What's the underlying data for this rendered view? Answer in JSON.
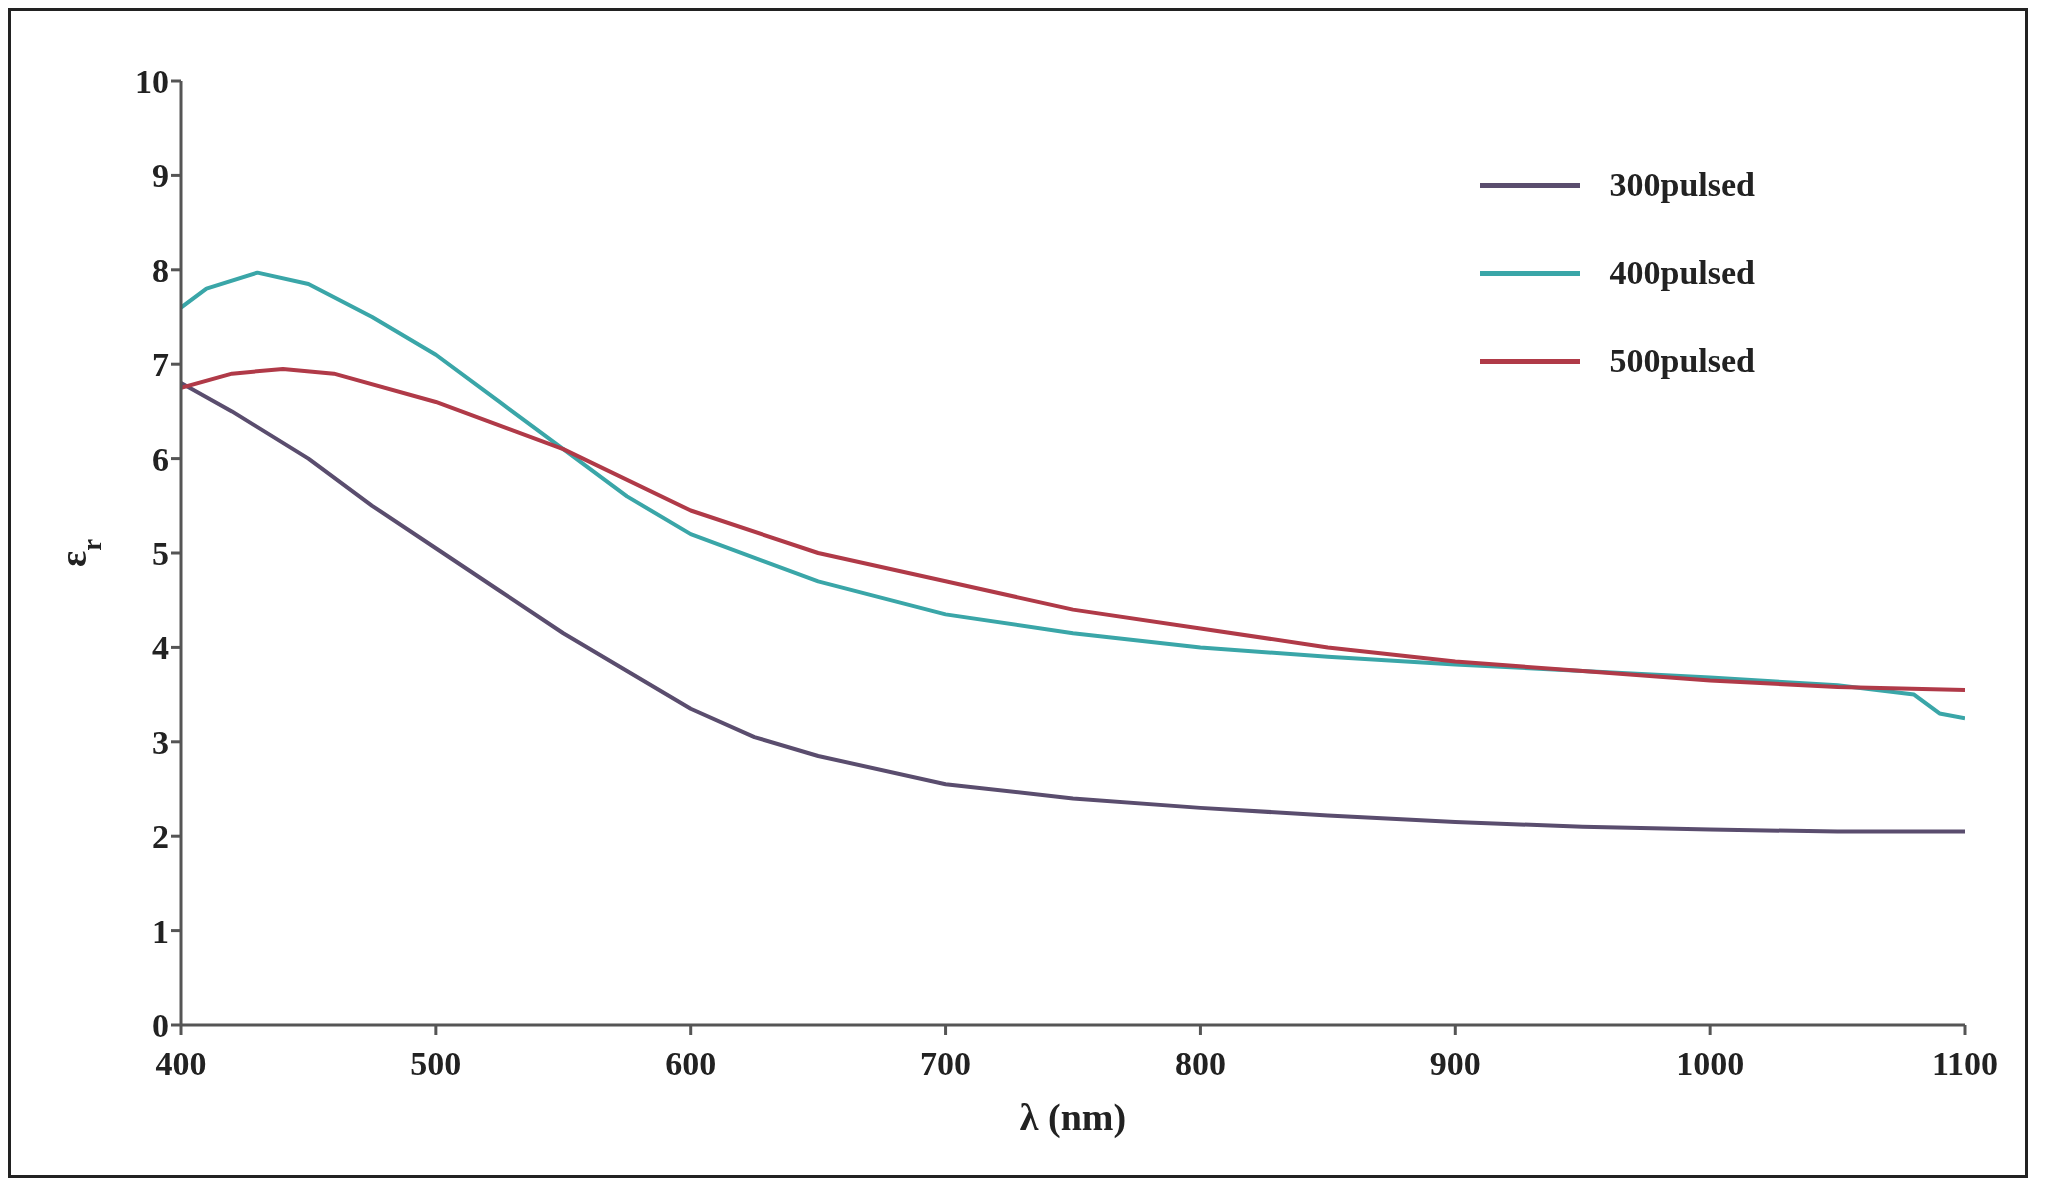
{
  "chart_data": {
    "type": "line",
    "xlabel": "λ (nm)",
    "ylabel": "ε$_{r}$",
    "xlim": [
      400,
      1100
    ],
    "xticks": [
      400,
      500,
      600,
      700,
      800,
      900,
      1000,
      1100
    ],
    "ylim": [
      0,
      10
    ],
    "yticks": [
      0,
      1,
      2,
      3,
      4,
      5,
      6,
      7,
      8,
      9,
      10
    ],
    "grid": false,
    "legend": "top right",
    "marker": "none",
    "line_style": "solid",
    "series": [
      {
        "name": "300pulsed",
        "color": "#5a4d6e",
        "x": [
          400,
          420,
          450,
          475,
          500,
          525,
          550,
          575,
          600,
          625,
          650,
          700,
          750,
          800,
          850,
          900,
          950,
          1000,
          1050,
          1100
        ],
        "values": [
          6.8,
          6.5,
          6.0,
          5.5,
          5.05,
          4.6,
          4.15,
          3.75,
          3.35,
          3.05,
          2.85,
          2.55,
          2.4,
          2.3,
          2.22,
          2.15,
          2.1,
          2.07,
          2.05,
          2.05
        ]
      },
      {
        "name": "400pulsed",
        "color": "#3aa6a8",
        "x": [
          400,
          410,
          430,
          450,
          475,
          500,
          525,
          550,
          575,
          600,
          650,
          700,
          750,
          800,
          850,
          900,
          950,
          1000,
          1050,
          1080,
          1090,
          1100
        ],
        "values": [
          7.6,
          7.8,
          7.97,
          7.85,
          7.5,
          7.1,
          6.6,
          6.1,
          5.6,
          5.2,
          4.7,
          4.35,
          4.15,
          4.0,
          3.9,
          3.82,
          3.75,
          3.68,
          3.6,
          3.5,
          3.3,
          3.25
        ]
      },
      {
        "name": "500pulsed",
        "color": "#b03a48",
        "x": [
          400,
          420,
          440,
          460,
          500,
          550,
          600,
          650,
          700,
          750,
          800,
          850,
          900,
          950,
          1000,
          1050,
          1100
        ],
        "values": [
          6.75,
          6.9,
          6.95,
          6.9,
          6.6,
          6.1,
          5.45,
          5.0,
          4.7,
          4.4,
          4.2,
          4.0,
          3.85,
          3.75,
          3.65,
          3.58,
          3.55
        ]
      }
    ]
  }
}
